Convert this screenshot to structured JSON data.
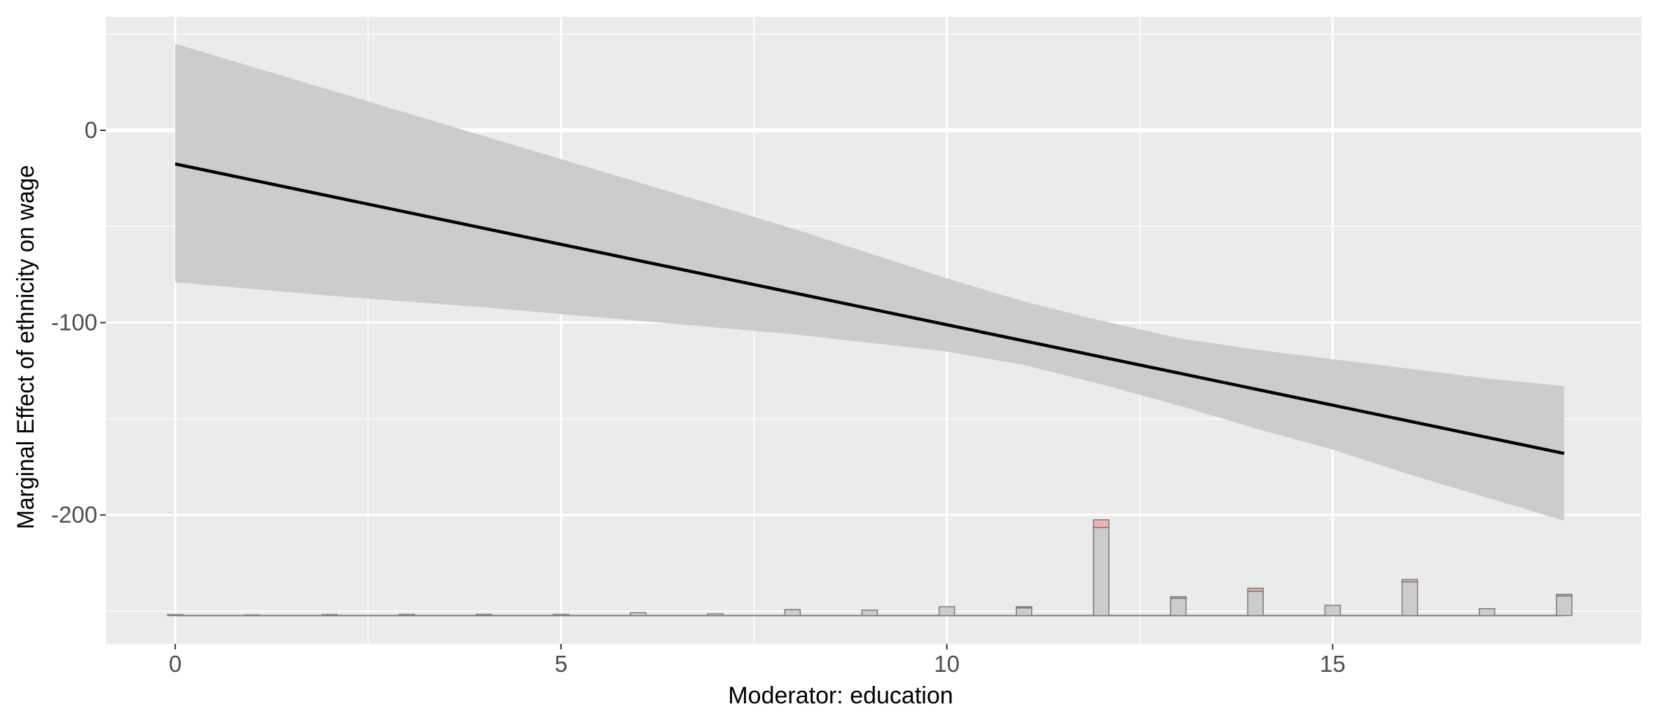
{
  "chart_data": {
    "type": "line",
    "title": "",
    "xlabel": "Moderator: education",
    "ylabel": "Marginal Effect of ethnicity on wage",
    "xlim": [
      -0.9,
      19.0
    ],
    "ylim": [
      -267,
      59
    ],
    "x_ticks": [
      0,
      5,
      10,
      15
    ],
    "y_ticks": [
      0,
      -100,
      -200
    ],
    "x_tick_labels": [
      "0",
      "5",
      "10",
      "15"
    ],
    "y_tick_labels": [
      "0",
      "-100",
      "-200"
    ],
    "grid": true,
    "reference_line_y": 0,
    "series": [
      {
        "x": [
          0,
          18
        ],
        "y": [
          -17.5,
          -168
        ]
      }
    ],
    "confidence_band": {
      "x": [
        0,
        2,
        4,
        6,
        8,
        10,
        11,
        12,
        13,
        14,
        15,
        16,
        17,
        18
      ],
      "lower": [
        -79,
        -86,
        -92,
        -99,
        -106,
        -115,
        -122,
        -132,
        -143,
        -155,
        -166,
        -179,
        -191,
        -203
      ],
      "upper": [
        45,
        21,
        -3,
        -27,
        -51,
        -77,
        -89,
        -99,
        -108,
        -114,
        -119,
        -124,
        -129,
        -133
      ]
    },
    "histogram": {
      "baseline": -252.3,
      "bins": [
        {
          "x": 0,
          "total": 0.5,
          "highlight": 0
        },
        {
          "x": 1,
          "total": 0.3,
          "highlight": 0
        },
        {
          "x": 2,
          "total": 0.5,
          "highlight": 0
        },
        {
          "x": 3,
          "total": 0.6,
          "highlight": 0
        },
        {
          "x": 4,
          "total": 0.6,
          "highlight": 0
        },
        {
          "x": 5,
          "total": 0.6,
          "highlight": 0
        },
        {
          "x": 6,
          "total": 1.5,
          "highlight": 0
        },
        {
          "x": 7,
          "total": 0.9,
          "highlight": 0
        },
        {
          "x": 8,
          "total": 3.1,
          "highlight": 0
        },
        {
          "x": 9,
          "total": 2.8,
          "highlight": 0
        },
        {
          "x": 10,
          "total": 4.6,
          "highlight": 0
        },
        {
          "x": 11,
          "total": 4.6,
          "highlight": 0.6
        },
        {
          "x": 12,
          "total": 49.8,
          "highlight": 4.0
        },
        {
          "x": 13,
          "total": 9.8,
          "highlight": 0.8
        },
        {
          "x": 14,
          "total": 14.2,
          "highlight": 1.6
        },
        {
          "x": 15,
          "total": 5.3,
          "highlight": 0
        },
        {
          "x": 16,
          "total": 18.7,
          "highlight": 1.2
        },
        {
          "x": 17,
          "total": 3.6,
          "highlight": 0
        },
        {
          "x": 18,
          "total": 11.0,
          "highlight": 0.8
        }
      ]
    },
    "colors": {
      "panel": "#ebebeb",
      "grid": "#ffffff",
      "band": "#cccccc",
      "line": "#000000",
      "bar": "#cccccc",
      "bar_stroke": "#7a7a7a",
      "highlight": "#f0b2ae"
    }
  }
}
